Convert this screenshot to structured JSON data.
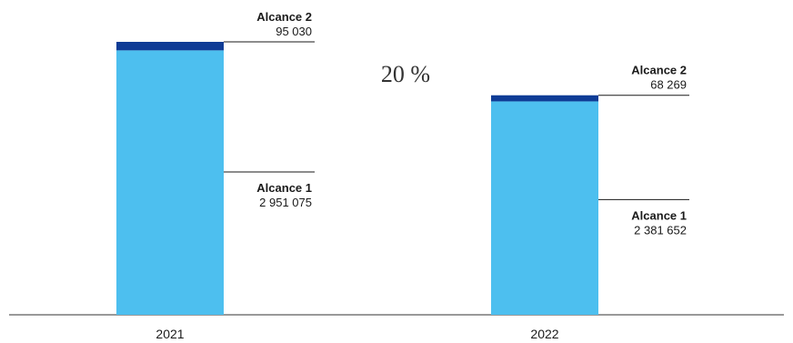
{
  "chart_data": {
    "type": "bar",
    "stacked": true,
    "categories": [
      "2021",
      "2022"
    ],
    "series": [
      {
        "name": "Alcance 1",
        "values": [
          2951075,
          2381652
        ],
        "labels": [
          "2 951 075",
          "2 381 652"
        ],
        "color": "#4dbfef"
      },
      {
        "name": "Alcance 2",
        "values": [
          95030,
          68269
        ],
        "labels": [
          "95 030",
          "68 269"
        ],
        "color": "#0f3c96"
      }
    ],
    "annotation": "20 %",
    "grid": false,
    "legend": "none"
  }
}
